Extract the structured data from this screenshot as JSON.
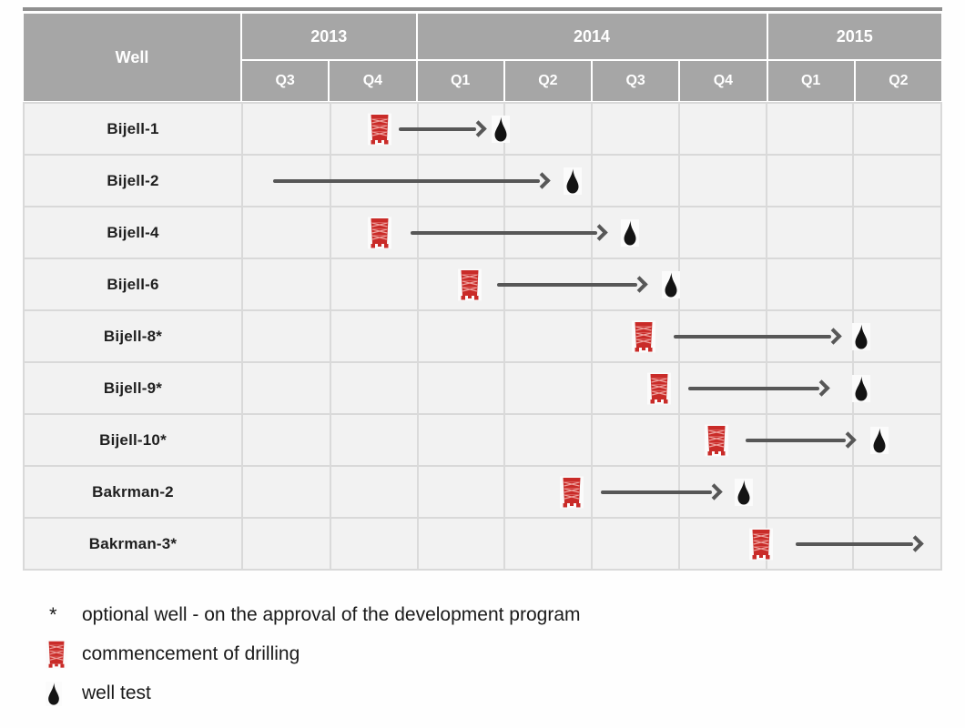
{
  "header": {
    "well_label": "Well",
    "years": [
      {
        "label": "2013",
        "quarters": [
          "Q3",
          "Q4"
        ]
      },
      {
        "label": "2014",
        "quarters": [
          "Q1",
          "Q2",
          "Q3",
          "Q4"
        ]
      },
      {
        "label": "2015",
        "quarters": [
          "Q1",
          "Q2"
        ]
      }
    ]
  },
  "chart_data": {
    "type": "table",
    "subtype": "gantt-schedule",
    "timeline": [
      "2013 Q3",
      "2013 Q4",
      "2014 Q1",
      "2014 Q2",
      "2014 Q3",
      "2014 Q4",
      "2015 Q1",
      "2015 Q2"
    ],
    "legend_position": "bottom-left",
    "wells": [
      {
        "well": "Bijell-1",
        "optional": false,
        "commencement_of_drilling": "2013 Q4",
        "well_test": "2014 Q1"
      },
      {
        "well": "Bijell-2",
        "optional": false,
        "commencement_of_drilling": null,
        "well_test": "2014 Q2",
        "activity_from": "2013 Q3"
      },
      {
        "well": "Bijell-4",
        "optional": false,
        "commencement_of_drilling": "2013 Q4",
        "well_test": "2014 Q3"
      },
      {
        "well": "Bijell-6",
        "optional": false,
        "commencement_of_drilling": "2014 Q1",
        "well_test": "2014 Q3"
      },
      {
        "well": "Bijell-8*",
        "optional": true,
        "commencement_of_drilling": "2014 Q3",
        "well_test": "2015 Q2"
      },
      {
        "well": "Bijell-9*",
        "optional": true,
        "commencement_of_drilling": "2014 Q3",
        "well_test": "2015 Q2"
      },
      {
        "well": "Bijell-10*",
        "optional": true,
        "commencement_of_drilling": "2014 Q4",
        "well_test": "2015 Q2"
      },
      {
        "well": "Bakrman-2",
        "optional": false,
        "commencement_of_drilling": "2014 Q2",
        "well_test": "2014 Q4"
      },
      {
        "well": "Bakrman-3*",
        "optional": true,
        "commencement_of_drilling": "2014 Q4",
        "well_test": null,
        "activity_to": "beyond 2015 Q2"
      }
    ]
  },
  "rows": [
    {
      "label": "Bijell-1",
      "rig_pct": 19.6,
      "arrow_start_pct": 22.3,
      "arrow_end_pct": 34.4,
      "drop_pct": 36.9
    },
    {
      "label": "Bijell-2",
      "rig_pct": null,
      "arrow_start_pct": 4.3,
      "arrow_end_pct": 43.5,
      "drop_pct": 47.3
    },
    {
      "label": "Bijell-4",
      "rig_pct": 19.6,
      "arrow_start_pct": 24.0,
      "arrow_end_pct": 51.7,
      "drop_pct": 55.5
    },
    {
      "label": "Bijell-6",
      "rig_pct": 32.5,
      "arrow_start_pct": 36.4,
      "arrow_end_pct": 57.4,
      "drop_pct": 61.3
    },
    {
      "label": "Bijell-8*",
      "rig_pct": 57.4,
      "arrow_start_pct": 61.7,
      "arrow_end_pct": 85.3,
      "drop_pct": 88.7
    },
    {
      "label": "Bijell-9*",
      "rig_pct": 59.6,
      "arrow_start_pct": 63.9,
      "arrow_end_pct": 83.5,
      "drop_pct": 88.7
    },
    {
      "label": "Bijell-10*",
      "rig_pct": 67.9,
      "arrow_start_pct": 72.1,
      "arrow_end_pct": 87.4,
      "drop_pct": 91.3
    },
    {
      "label": "Bakrman-2",
      "rig_pct": 47.1,
      "arrow_start_pct": 51.3,
      "arrow_end_pct": 68.2,
      "drop_pct": 71.8
    },
    {
      "label": "Bakrman-3*",
      "rig_pct": 74.3,
      "arrow_start_pct": 79.2,
      "arrow_end_pct": 97.0,
      "drop_pct": null
    }
  ],
  "legend": {
    "optional_symbol": "*",
    "optional_text": "optional well - on the approval of the development program",
    "drilling_text": "commencement of drilling",
    "well_test_text": "well test"
  },
  "colors": {
    "header_gray": "#a6a6a6",
    "cell_bg": "#f2f2f2",
    "gridline": "#dadada",
    "arrow_gray": "#575757",
    "rig_red": "#c92b28",
    "drop_black": "#141414"
  }
}
